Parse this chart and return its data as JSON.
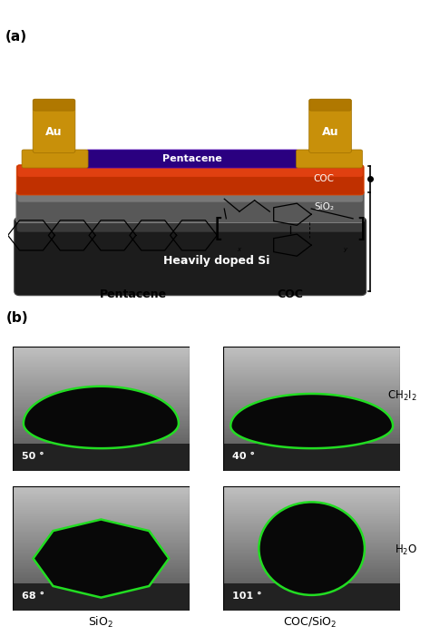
{
  "panel_a_label": "(a)",
  "panel_b_label": "(b)",
  "bg_color": "#ffffff",
  "au_color": "#c8900a",
  "au_dark": "#a07000",
  "pentacene_color": "#2a0080",
  "pentacene_label": "Pentacene",
  "au_label": "Au",
  "coc_label": "COC",
  "sio2_label": "SiO₂",
  "si_label": "Heavily doped Si",
  "coc_layer_color": "#b82800",
  "sio2_layer_color": "#606060",
  "si_layer_color": "#181818",
  "molecule_pentacene_label": "Pentacene",
  "molecule_coc_label": "COC",
  "green_edge": "#22dd22",
  "contact_angles": [
    "50 °",
    "40 °",
    "68 °",
    "101 °"
  ],
  "liquid_labels": [
    "CH₂I₂",
    "H₂O"
  ],
  "substrate_labels": [
    "SiO₂",
    "COC/SiO₂"
  ]
}
